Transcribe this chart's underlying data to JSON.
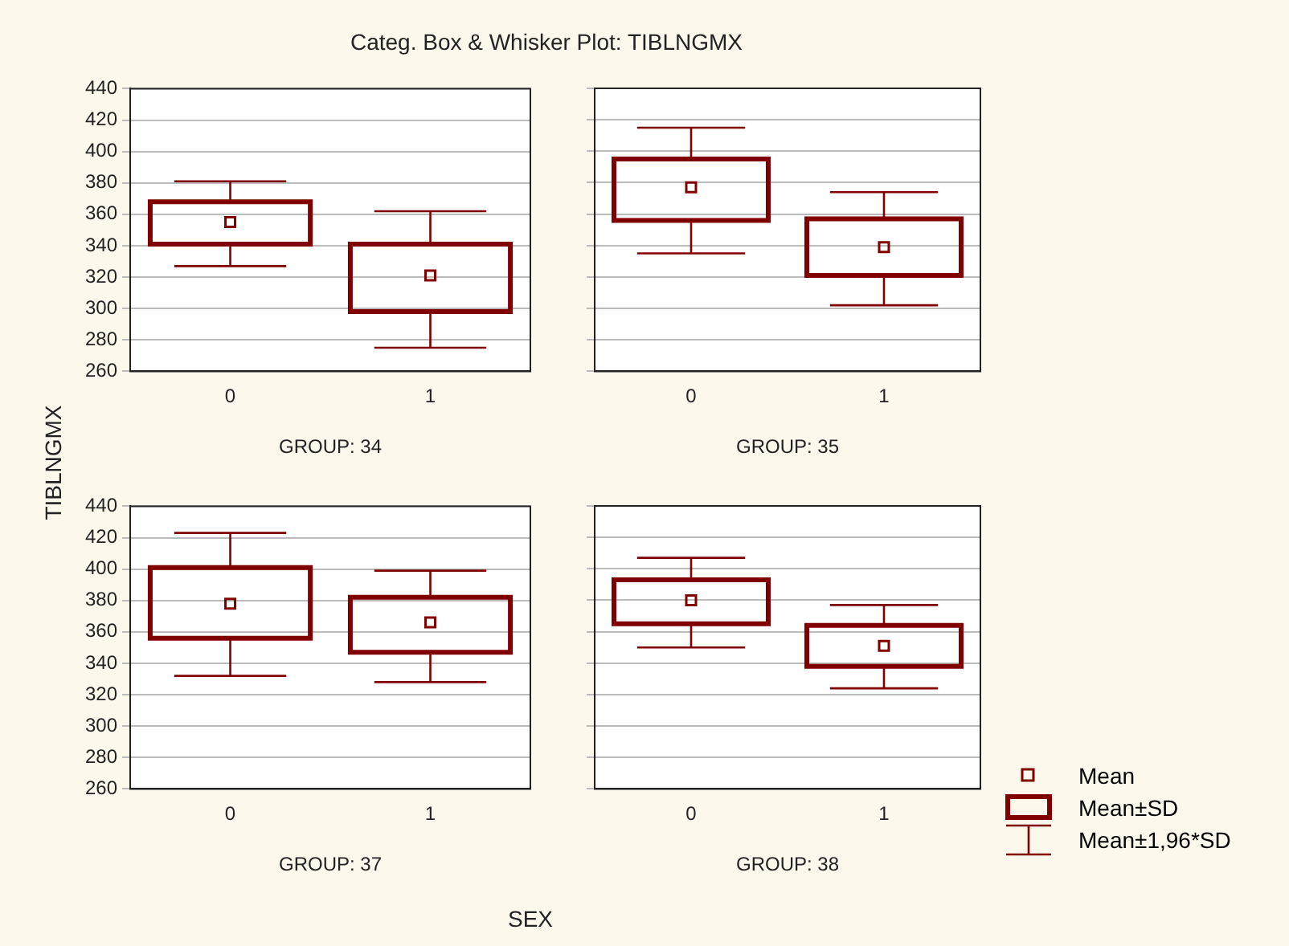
{
  "chart_data": [
    {
      "type": "box",
      "title": "Categ. Box & Whisker Plot: TIBLNGMX",
      "ylabel": "TIBLNGMX",
      "xlabel": "GROUP: 34",
      "annotations": [
        "SEX"
      ],
      "categories": [
        "0",
        "1"
      ],
      "ylim": [
        260,
        440
      ],
      "yticks": [
        260,
        280,
        300,
        320,
        340,
        360,
        380,
        400,
        420,
        440
      ],
      "grid": "y",
      "marker": "square",
      "series": [
        {
          "color": "#800000",
          "boxes": [
            {
              "low": 327,
              "q1": 341,
              "median": 355,
              "q3": 368,
              "high": 381
            },
            {
              "low": 275,
              "q1": 298,
              "median": 321,
              "q3": 341,
              "high": 362
            }
          ]
        }
      ]
    },
    {
      "type": "box",
      "xlabel": "GROUP: 35",
      "categories": [
        "0",
        "1"
      ],
      "ylim": [
        260,
        440
      ],
      "yticks": [
        260,
        280,
        300,
        320,
        340,
        360,
        380,
        400,
        420,
        440
      ],
      "grid": "y",
      "marker": "square",
      "tick_labels": "x",
      "series": [
        {
          "color": "#800000",
          "boxes": [
            {
              "low": 335,
              "q1": 356,
              "median": 377,
              "q3": 395,
              "high": 415
            },
            {
              "low": 302,
              "q1": 321,
              "median": 339,
              "q3": 357,
              "high": 374
            }
          ]
        }
      ]
    },
    {
      "type": "box",
      "xlabel": "GROUP: 37",
      "categories": [
        "0",
        "1"
      ],
      "ylim": [
        260,
        440
      ],
      "yticks": [
        260,
        280,
        300,
        320,
        340,
        360,
        380,
        400,
        420,
        440
      ],
      "grid": "y",
      "marker": "square",
      "series": [
        {
          "color": "#800000",
          "boxes": [
            {
              "low": 332,
              "q1": 356,
              "median": 378,
              "q3": 401,
              "high": 423
            },
            {
              "low": 328,
              "q1": 347,
              "median": 366,
              "q3": 382,
              "high": 399
            }
          ]
        }
      ]
    },
    {
      "type": "box",
      "xlabel": "GROUP: 38",
      "annotations": [
        "Mean",
        "Mean±SD",
        "Mean±1,96*SD"
      ],
      "categories": [
        "0",
        "1"
      ],
      "ylim": [
        260,
        440
      ],
      "yticks": [
        260,
        280,
        300,
        320,
        340,
        360,
        380,
        400,
        420,
        440
      ],
      "grid": "y",
      "marker": "square",
      "tick_labels": "x",
      "series": [
        {
          "color": "#800000",
          "boxes": [
            {
              "low": 350,
              "q1": 365,
              "median": 380,
              "q3": 393,
              "high": 407
            },
            {
              "low": 324,
              "q1": 338,
              "median": 351,
              "q3": 364,
              "high": 377
            }
          ]
        }
      ]
    }
  ]
}
